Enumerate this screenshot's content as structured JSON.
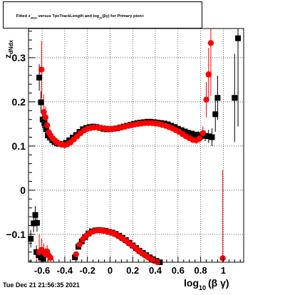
{
  "title": {
    "main": "Fitted  z",
    "sub": "dNdx",
    "middle": "  versus TpcTrackLength and log",
    "sub2": "10",
    "tail": "(βγ) for Primary pion+"
  },
  "footer": {
    "datestamp": "Tue Dec 21 21:56:35 2021"
  },
  "colors": {
    "black_series": "#000000",
    "red_series": "#ff0000",
    "grid": "#000000"
  },
  "chart_data": {
    "type": "scatter",
    "title": "Fitted z_dNdx versus TpcTrackLength and log10(βγ) for Primary pion+",
    "xlabel": {
      "main": "log",
      "sub": "10",
      "tail": "(β γ)"
    },
    "ylabel": {
      "main": "z",
      "sub": "dNdx"
    },
    "xlim": [
      -0.72,
      1.18
    ],
    "ylim": [
      -0.163,
      0.366
    ],
    "xticks": [
      {
        "value": -0.6,
        "label": "-0.6"
      },
      {
        "value": -0.4,
        "label": "-0.4"
      },
      {
        "value": -0.2,
        "label": "-0.2"
      },
      {
        "value": 0,
        "label": "0"
      },
      {
        "value": 0.2,
        "label": "0.2"
      },
      {
        "value": 0.4,
        "label": "0.4"
      },
      {
        "value": 0.6,
        "label": "0.6"
      },
      {
        "value": 0.8,
        "label": "0.8"
      },
      {
        "value": 1,
        "label": "1"
      }
    ],
    "yticks": [
      {
        "value": -0.1,
        "label": "−0.1"
      },
      {
        "value": 0,
        "label": "0"
      },
      {
        "value": 0.1,
        "label": "0.1"
      },
      {
        "value": 0.2,
        "label": "0.2"
      },
      {
        "value": 0.3,
        "label": "0.3"
      }
    ],
    "grid": true,
    "series": [
      {
        "marker": "square",
        "color": "#000000",
        "points": [
          [
            -0.7,
            -0.11,
            0.02
          ],
          [
            -0.675,
            -0.075,
            0.02
          ],
          [
            -0.66,
            -0.056,
            0.02
          ],
          [
            -0.645,
            -0.074,
            0.02
          ],
          [
            -0.625,
            0.255,
            0.03
          ],
          [
            -0.61,
            0.199,
            0.025
          ],
          [
            -0.595,
            0.16,
            0.02
          ],
          [
            -0.58,
            0.152,
            0.015
          ],
          [
            -0.565,
            0.138,
            0.01
          ],
          [
            -0.55,
            0.124,
            0.008
          ],
          [
            -0.53,
            0.119,
            0.006
          ],
          [
            -0.51,
            0.113,
            0.005
          ],
          [
            -0.49,
            0.109,
            0.004
          ],
          [
            -0.47,
            0.106,
            0.003
          ],
          [
            -0.45,
            0.105,
            0.003
          ],
          [
            -0.42,
            0.104,
            0.003
          ],
          [
            -0.39,
            0.107,
            0.002
          ],
          [
            -0.36,
            0.113,
            0.002
          ],
          [
            -0.33,
            0.119,
            0.002
          ],
          [
            -0.3,
            0.125,
            0.002
          ],
          [
            -0.27,
            0.132,
            0.002
          ],
          [
            -0.24,
            0.138,
            0.002
          ],
          [
            -0.21,
            0.141,
            0.002
          ],
          [
            -0.18,
            0.143,
            0.002
          ],
          [
            -0.15,
            0.144,
            0.002
          ],
          [
            -0.12,
            0.143,
            0.002
          ],
          [
            -0.09,
            0.141,
            0.002
          ],
          [
            -0.06,
            0.139,
            0.002
          ],
          [
            -0.03,
            0.138,
            0.002
          ],
          [
            0.0,
            0.138,
            0.002
          ],
          [
            0.03,
            0.139,
            0.002
          ],
          [
            0.06,
            0.14,
            0.002
          ],
          [
            0.09,
            0.142,
            0.002
          ],
          [
            0.12,
            0.144,
            0.002
          ],
          [
            0.15,
            0.146,
            0.002
          ],
          [
            0.18,
            0.148,
            0.002
          ],
          [
            0.21,
            0.15,
            0.002
          ],
          [
            0.24,
            0.152,
            0.002
          ],
          [
            0.27,
            0.153,
            0.002
          ],
          [
            0.3,
            0.154,
            0.002
          ],
          [
            0.33,
            0.155,
            0.002
          ],
          [
            0.36,
            0.155,
            0.002
          ],
          [
            0.39,
            0.154,
            0.002
          ],
          [
            0.42,
            0.153,
            0.002
          ],
          [
            0.45,
            0.152,
            0.002
          ],
          [
            0.48,
            0.151,
            0.002
          ],
          [
            0.51,
            0.149,
            0.002
          ],
          [
            0.54,
            0.146,
            0.003
          ],
          [
            0.57,
            0.143,
            0.003
          ],
          [
            0.6,
            0.139,
            0.003
          ],
          [
            0.63,
            0.136,
            0.004
          ],
          [
            0.66,
            0.133,
            0.004
          ],
          [
            0.69,
            0.13,
            0.005
          ],
          [
            0.72,
            0.128,
            0.006
          ],
          [
            0.75,
            0.126,
            0.007
          ],
          [
            0.78,
            0.125,
            0.008
          ],
          [
            0.81,
            0.124,
            0.01
          ],
          [
            0.84,
            0.123,
            0.012
          ],
          [
            0.87,
            0.122,
            0.015
          ],
          [
            0.9,
            0.12,
            0.02
          ],
          [
            0.93,
            0.172,
            0.04
          ],
          [
            0.95,
            0.209,
            0.05
          ],
          [
            1.1,
            0.209,
            0.1
          ],
          [
            1.13,
            0.344,
            0.2
          ],
          [
            -0.65,
            -0.14,
            0.015
          ],
          [
            -0.63,
            -0.147,
            0.012
          ],
          [
            -0.61,
            -0.152,
            0.01
          ],
          [
            -0.59,
            -0.155,
            0.008
          ],
          [
            -0.31,
            -0.152,
            0.004
          ],
          [
            -0.28,
            -0.128,
            0.003
          ],
          [
            -0.25,
            -0.116,
            0.003
          ],
          [
            -0.22,
            -0.106,
            0.003
          ],
          [
            -0.19,
            -0.098,
            0.002
          ],
          [
            -0.16,
            -0.093,
            0.002
          ],
          [
            -0.13,
            -0.091,
            0.002
          ],
          [
            -0.1,
            -0.09,
            0.002
          ],
          [
            -0.07,
            -0.091,
            0.002
          ],
          [
            -0.04,
            -0.092,
            0.002
          ],
          [
            -0.01,
            -0.094,
            0.002
          ],
          [
            0.02,
            -0.096,
            0.002
          ],
          [
            0.05,
            -0.099,
            0.002
          ],
          [
            0.08,
            -0.103,
            0.002
          ],
          [
            0.11,
            -0.108,
            0.002
          ],
          [
            0.14,
            -0.113,
            0.002
          ],
          [
            0.17,
            -0.119,
            0.002
          ],
          [
            0.2,
            -0.125,
            0.002
          ],
          [
            0.23,
            -0.131,
            0.002
          ],
          [
            0.26,
            -0.137,
            0.002
          ],
          [
            0.29,
            -0.142,
            0.002
          ],
          [
            0.32,
            -0.147,
            0.003
          ],
          [
            0.35,
            -0.152,
            0.003
          ],
          [
            0.38,
            -0.156,
            0.003
          ],
          [
            0.41,
            -0.16,
            0.003
          ],
          [
            0.44,
            -0.163,
            0.003
          ]
        ]
      },
      {
        "marker": "circle",
        "color": "#ff0000",
        "points": [
          [
            -0.605,
            0.273,
            0.065
          ],
          [
            -0.585,
            0.177,
            0.04
          ],
          [
            -0.57,
            0.165,
            0.025
          ],
          [
            -0.555,
            0.147,
            0.015
          ],
          [
            -0.54,
            0.131,
            0.01
          ],
          [
            -0.525,
            0.124,
            0.007
          ],
          [
            -0.505,
            0.117,
            0.005
          ],
          [
            -0.485,
            0.112,
            0.004
          ],
          [
            -0.465,
            0.108,
            0.003
          ],
          [
            -0.445,
            0.105,
            0.003
          ],
          [
            -0.425,
            0.103,
            0.003
          ],
          [
            -0.4,
            0.102,
            0.003
          ],
          [
            -0.375,
            0.104,
            0.002
          ],
          [
            -0.35,
            0.108,
            0.002
          ],
          [
            -0.32,
            0.115,
            0.002
          ],
          [
            -0.29,
            0.122,
            0.002
          ],
          [
            -0.26,
            0.129,
            0.002
          ],
          [
            -0.23,
            0.135,
            0.002
          ],
          [
            -0.2,
            0.139,
            0.002
          ],
          [
            -0.17,
            0.141,
            0.002
          ],
          [
            -0.14,
            0.142,
            0.002
          ],
          [
            -0.11,
            0.142,
            0.002
          ],
          [
            -0.08,
            0.141,
            0.002
          ],
          [
            -0.05,
            0.14,
            0.002
          ],
          [
            -0.02,
            0.139,
            0.002
          ],
          [
            0.01,
            0.139,
            0.002
          ],
          [
            0.04,
            0.139,
            0.002
          ],
          [
            0.07,
            0.141,
            0.002
          ],
          [
            0.1,
            0.142,
            0.002
          ],
          [
            0.13,
            0.144,
            0.002
          ],
          [
            0.16,
            0.146,
            0.002
          ],
          [
            0.19,
            0.147,
            0.002
          ],
          [
            0.22,
            0.149,
            0.002
          ],
          [
            0.25,
            0.15,
            0.002
          ],
          [
            0.28,
            0.151,
            0.002
          ],
          [
            0.31,
            0.152,
            0.002
          ],
          [
            0.34,
            0.152,
            0.002
          ],
          [
            0.37,
            0.152,
            0.002
          ],
          [
            0.4,
            0.151,
            0.002
          ],
          [
            0.43,
            0.15,
            0.002
          ],
          [
            0.46,
            0.148,
            0.002
          ],
          [
            0.49,
            0.146,
            0.002
          ],
          [
            0.52,
            0.143,
            0.003
          ],
          [
            0.55,
            0.14,
            0.003
          ],
          [
            0.58,
            0.136,
            0.003
          ],
          [
            0.61,
            0.132,
            0.004
          ],
          [
            0.64,
            0.127,
            0.004
          ],
          [
            0.67,
            0.122,
            0.005
          ],
          [
            0.7,
            0.118,
            0.006
          ],
          [
            0.73,
            0.114,
            0.007
          ],
          [
            0.76,
            0.113,
            0.008
          ],
          [
            0.79,
            0.117,
            0.01
          ],
          [
            0.82,
            0.129,
            0.015
          ],
          [
            0.85,
            0.205,
            0.04
          ],
          [
            0.87,
            0.262,
            0.06
          ],
          [
            0.89,
            0.333,
            0.12
          ],
          [
            0.995,
            -0.154,
            0.2
          ],
          [
            -0.625,
            -0.14,
            0.04
          ],
          [
            -0.605,
            -0.135,
            0.025
          ],
          [
            -0.585,
            -0.14,
            0.02
          ],
          [
            -0.57,
            -0.145,
            0.015
          ],
          [
            -0.555,
            -0.139,
            0.015
          ],
          [
            -0.54,
            -0.148,
            0.012
          ],
          [
            -0.525,
            -0.153,
            0.01
          ],
          [
            -0.3,
            -0.145,
            0.004
          ],
          [
            -0.27,
            -0.123,
            0.003
          ],
          [
            -0.24,
            -0.111,
            0.003
          ],
          [
            -0.21,
            -0.103,
            0.003
          ],
          [
            -0.18,
            -0.097,
            0.002
          ],
          [
            -0.15,
            -0.093,
            0.002
          ],
          [
            -0.12,
            -0.091,
            0.002
          ],
          [
            -0.09,
            -0.091,
            0.002
          ],
          [
            -0.06,
            -0.092,
            0.002
          ],
          [
            -0.03,
            -0.093,
            0.002
          ],
          [
            0.0,
            -0.095,
            0.002
          ],
          [
            0.03,
            -0.098,
            0.002
          ],
          [
            0.06,
            -0.101,
            0.002
          ],
          [
            0.09,
            -0.106,
            0.002
          ],
          [
            0.12,
            -0.111,
            0.002
          ],
          [
            0.15,
            -0.116,
            0.002
          ],
          [
            0.18,
            -0.122,
            0.002
          ],
          [
            0.21,
            -0.128,
            0.002
          ],
          [
            0.24,
            -0.134,
            0.002
          ],
          [
            0.27,
            -0.14,
            0.002
          ],
          [
            0.3,
            -0.146,
            0.003
          ],
          [
            0.33,
            -0.151,
            0.003
          ],
          [
            0.36,
            -0.156,
            0.003
          ],
          [
            0.39,
            -0.16,
            0.003
          ],
          [
            0.42,
            -0.163,
            0.003
          ]
        ]
      }
    ]
  }
}
